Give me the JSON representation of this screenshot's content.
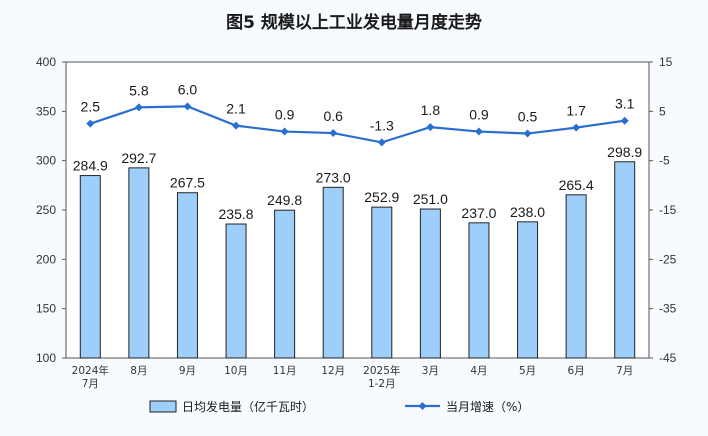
{
  "chart_data": {
    "type": "bar",
    "title": "图5  规模以上工业发电量月度走势",
    "categories": [
      [
        "2024年",
        "7月"
      ],
      [
        "8月"
      ],
      [
        "9月"
      ],
      [
        "10月"
      ],
      [
        "11月"
      ],
      [
        "12月"
      ],
      [
        "2025年",
        "1-2月"
      ],
      [
        "3月"
      ],
      [
        "4月"
      ],
      [
        "5月"
      ],
      [
        "6月"
      ],
      [
        "7月"
      ]
    ],
    "series": [
      {
        "name": "日均发电量（亿千瓦时）",
        "type": "bar",
        "axis": "left",
        "color": "#9dcffa",
        "values": [
          284.9,
          292.7,
          267.5,
          235.8,
          249.8,
          273.0,
          252.9,
          251.0,
          237.0,
          238.0,
          265.4,
          298.9
        ],
        "labels": [
          "284.9",
          "292.7",
          "267.5",
          "235.8",
          "249.8",
          "273.0",
          "252.9",
          "251.0",
          "237.0",
          "238.0",
          "265.4",
          "298.9"
        ]
      },
      {
        "name": "当月增速（%）",
        "type": "line",
        "axis": "right",
        "color": "#2a6fcf",
        "values": [
          2.5,
          5.8,
          6.0,
          2.1,
          0.9,
          0.6,
          -1.3,
          1.8,
          0.9,
          0.5,
          1.7,
          3.1
        ],
        "labels": [
          "2.5",
          "5.8",
          "6.0",
          "2.1",
          "0.9",
          "0.6",
          "-1.3",
          "1.8",
          "0.9",
          "0.5",
          "1.7",
          "3.1"
        ]
      }
    ],
    "y_left": {
      "min": 100,
      "max": 400,
      "ticks": [
        "400",
        "350",
        "300",
        "250",
        "200",
        "150",
        "100"
      ]
    },
    "y_right": {
      "min": -45,
      "max": 15,
      "ticks": [
        "15",
        "5",
        "-5",
        "-15",
        "-25",
        "-35",
        "-45"
      ]
    },
    "grid": false,
    "legend_position": "bottom"
  }
}
